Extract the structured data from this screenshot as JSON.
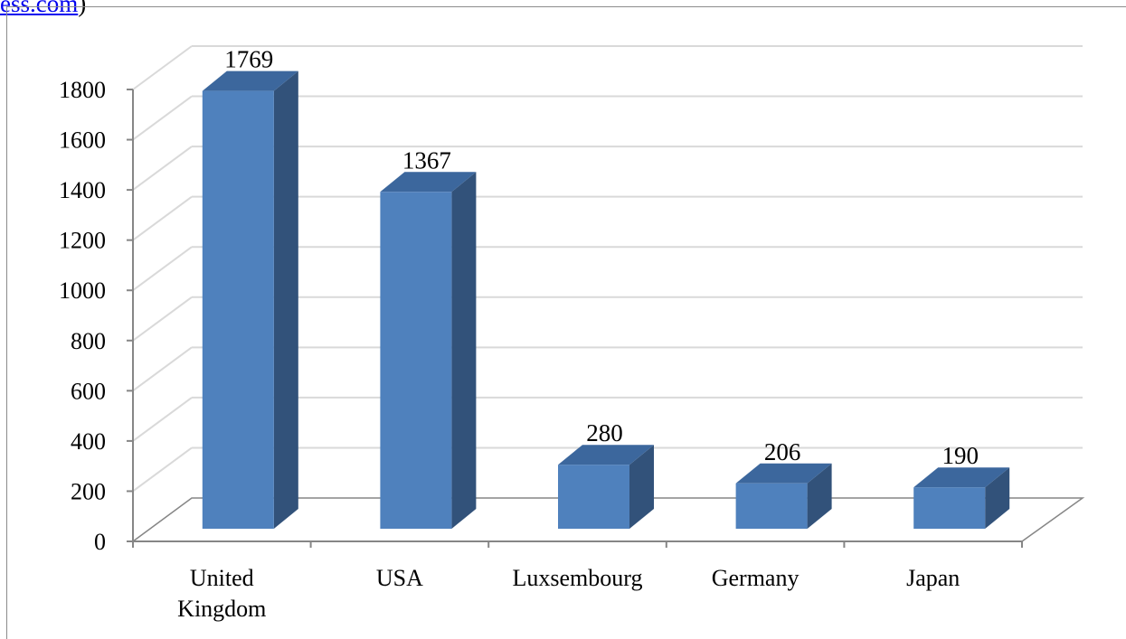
{
  "header": {
    "link_text": "ess.com",
    "trailing_text": ")"
  },
  "chart_data": {
    "type": "bar",
    "style": "3d-column",
    "categories": [
      "United Kingdom",
      "USA",
      "Luxsembourg",
      "Germany",
      "Japan"
    ],
    "category_lines": [
      [
        "United",
        "Kingdom"
      ],
      [
        "USA"
      ],
      [
        "Luxsembourg"
      ],
      [
        "Germany"
      ],
      [
        "Japan"
      ]
    ],
    "values": [
      1769,
      1367,
      280,
      206,
      190
    ],
    "value_labels": [
      "1769",
      "1367",
      "280",
      "206",
      "190"
    ],
    "y_ticks": [
      "0",
      "200",
      "400",
      "600",
      "800",
      "1000",
      "1200",
      "1400",
      "1600",
      "1800"
    ],
    "ylim": [
      0,
      1800
    ],
    "grid": true,
    "legend": "none",
    "colors": {
      "bar_front": "#4f81bd",
      "bar_side": "#32527a",
      "bar_top": "#3c679d",
      "grid": "#d9d9d9",
      "axis": "#868686"
    }
  }
}
